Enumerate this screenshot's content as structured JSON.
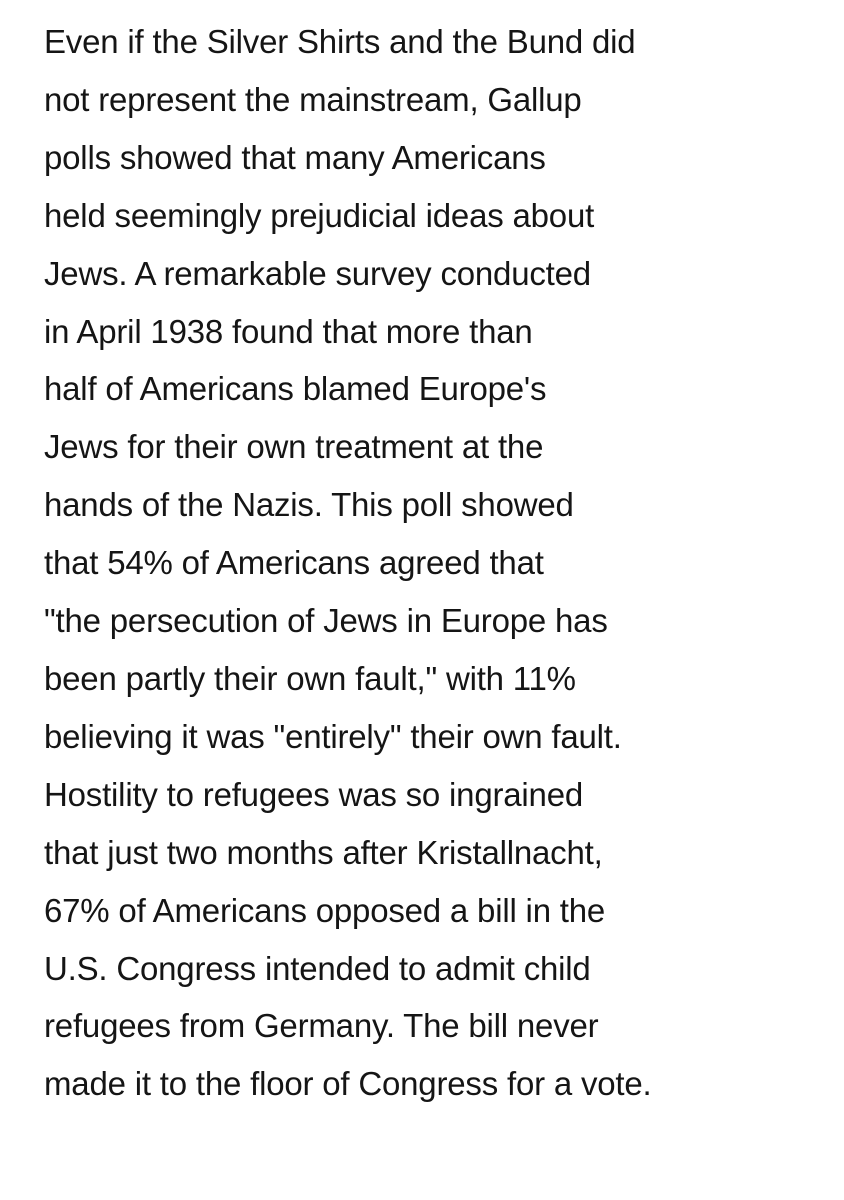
{
  "paragraph": {
    "lines": [
      "Even if the Silver Shirts and the Bund did",
      "not represent the mainstream, Gallup",
      "polls showed that many Americans",
      "held seemingly prejudicial ideas about",
      "Jews. A remarkable survey conducted",
      "in April 1938 found that more than",
      "half of Americans blamed Europe's",
      "Jews for their own treatment at the",
      "hands of the Nazis. This poll showed",
      "that 54% of Americans agreed that",
      "\"the persecution of Jews in Europe has",
      "been partly their own fault,\" with 11%",
      "believing it was \"entirely\" their own fault.",
      "Hostility to refugees was so ingrained",
      "that just two months after Kristallnacht,",
      "67% of Americans opposed a bill in the",
      "U.S. Congress intended to admit child",
      "refugees from Germany. The bill never",
      "made it to the floor of Congress for a vote."
    ]
  }
}
